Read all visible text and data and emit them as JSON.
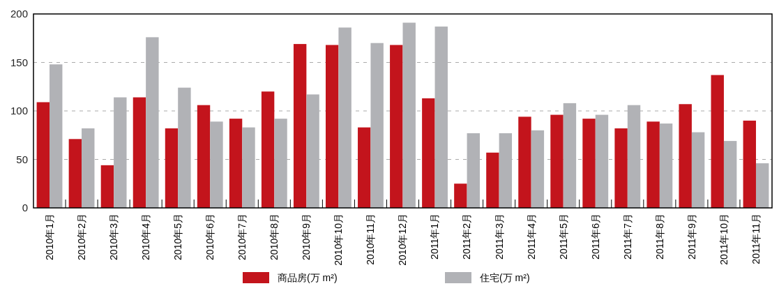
{
  "chart_data": {
    "type": "bar",
    "categories": [
      "2010年1月",
      "2010年2月",
      "2010年3月",
      "2010年4月",
      "2010年5月",
      "2010年6月",
      "2010年7月",
      "2010年8月",
      "2010年9月",
      "2010年10月",
      "2010年11月",
      "2010年12月",
      "2011年1月",
      "2011年2月",
      "2011年3月",
      "2011年4月",
      "2011年5月",
      "2011年6月",
      "2011年7月",
      "2011年8月",
      "2011年9月",
      "2011年10月",
      "2011年11月"
    ],
    "series": [
      {
        "name": "商品房(万 m²)",
        "color": "#c3141c",
        "values": [
          109,
          71,
          44,
          114,
          82,
          106,
          92,
          120,
          169,
          168,
          83,
          168,
          113,
          25,
          57,
          94,
          96,
          92,
          82,
          89,
          107,
          137,
          90
        ]
      },
      {
        "name": "住宅(万 m²)",
        "color": "#b1b2b6",
        "values": [
          148,
          82,
          114,
          176,
          124,
          89,
          83,
          92,
          117,
          186,
          170,
          191,
          187,
          77,
          77,
          80,
          108,
          96,
          106,
          87,
          78,
          69,
          46
        ]
      }
    ],
    "ylim": [
      0,
      200
    ],
    "yticks": [
      0,
      50,
      100,
      150,
      200
    ],
    "grid": "y",
    "legend": "bottom"
  }
}
